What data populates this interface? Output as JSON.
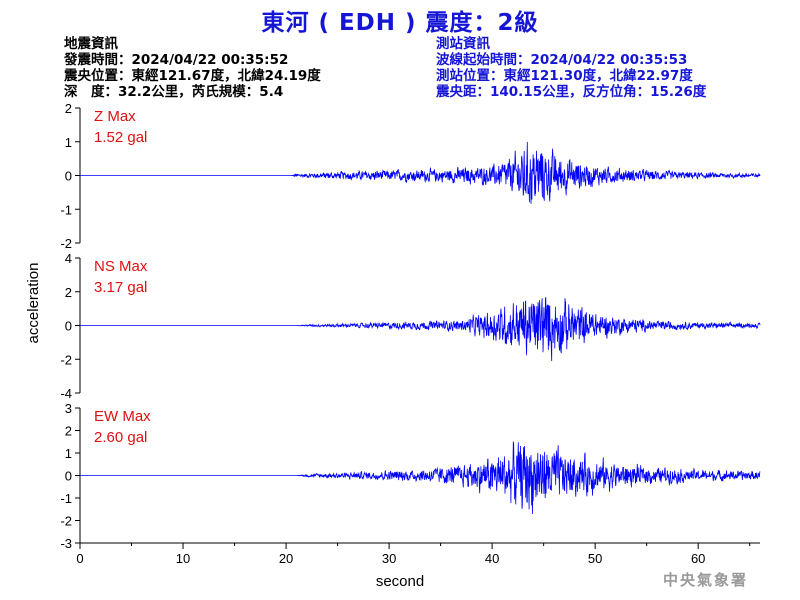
{
  "title": "東河 ( EDH ) 震度：2級",
  "quake_info": {
    "heading": "地震資訊",
    "origin_time": "發震時間：2024/04/22 00:35:52",
    "epicenter": "震央位置：東經121.67度，北緯24.19度",
    "depth_magnitude": "深　度：32.2公里，芮氏規模：5.4"
  },
  "station_info": {
    "heading": "測站資訊",
    "wave_start": "波線起始時間：2024/04/22 00:35:53",
    "station_location": "測站位置：東經121.30度，北緯22.97度",
    "distance_azimuth": "震央距：140.15公里，反方位角：15.26度"
  },
  "footer": "中央氣象署",
  "chart_data": {
    "type": "line",
    "xlabel": "second",
    "ylabel": "acceleration",
    "xlim": [
      0,
      66
    ],
    "xticks": [
      "0",
      "10",
      "20",
      "30",
      "40",
      "50",
      "60"
    ],
    "line_color": "#0000ff",
    "label_color": "#dd1111",
    "panels": [
      {
        "name": "Z Max",
        "max_label": "1.52 gal",
        "ylim": [
          -2,
          2
        ],
        "yticks": [
          "2",
          "1",
          "0",
          "-1",
          "-2"
        ],
        "peak": 1.52,
        "envelope": [
          [
            0,
            0
          ],
          [
            20.5,
            0
          ],
          [
            21,
            0.08
          ],
          [
            25,
            0.18
          ],
          [
            30,
            0.25
          ],
          [
            35,
            0.3
          ],
          [
            40,
            0.45
          ],
          [
            42,
            0.85
          ],
          [
            43,
            1.4
          ],
          [
            44.5,
            1.52
          ],
          [
            46,
            1.0
          ],
          [
            48,
            0.7
          ],
          [
            50,
            0.45
          ],
          [
            53,
            0.3
          ],
          [
            58,
            0.18
          ],
          [
            62,
            0.12
          ],
          [
            66,
            0.1
          ]
        ]
      },
      {
        "name": "NS Max",
        "max_label": "3.17 gal",
        "ylim": [
          -4,
          4
        ],
        "yticks": [
          "4",
          "2",
          "0",
          "-2",
          "-4"
        ],
        "peak": 3.17,
        "envelope": [
          [
            0,
            0
          ],
          [
            21,
            0
          ],
          [
            22,
            0.08
          ],
          [
            27,
            0.2
          ],
          [
            32,
            0.35
          ],
          [
            37,
            0.5
          ],
          [
            40,
            1.4
          ],
          [
            42,
            2.2
          ],
          [
            43.5,
            2.8
          ],
          [
            45,
            3.17
          ],
          [
            47,
            2.4
          ],
          [
            49,
            1.6
          ],
          [
            51,
            1.0
          ],
          [
            55,
            0.5
          ],
          [
            60,
            0.3
          ],
          [
            66,
            0.2
          ]
        ]
      },
      {
        "name": "EW Max",
        "max_label": "2.60 gal",
        "ylim": [
          -3,
          3
        ],
        "yticks": [
          "3",
          "2",
          "1",
          "0",
          "-1",
          "-2",
          "-3"
        ],
        "peak": 2.6,
        "envelope": [
          [
            0,
            0
          ],
          [
            21,
            0
          ],
          [
            22,
            0.1
          ],
          [
            27,
            0.25
          ],
          [
            32,
            0.4
          ],
          [
            37,
            0.7
          ],
          [
            40,
            1.3
          ],
          [
            42,
            2.0
          ],
          [
            43.5,
            2.6
          ],
          [
            45,
            2.1
          ],
          [
            47,
            1.6
          ],
          [
            49,
            1.3
          ],
          [
            51,
            1.0
          ],
          [
            55,
            0.6
          ],
          [
            60,
            0.4
          ],
          [
            66,
            0.3
          ]
        ]
      }
    ]
  }
}
